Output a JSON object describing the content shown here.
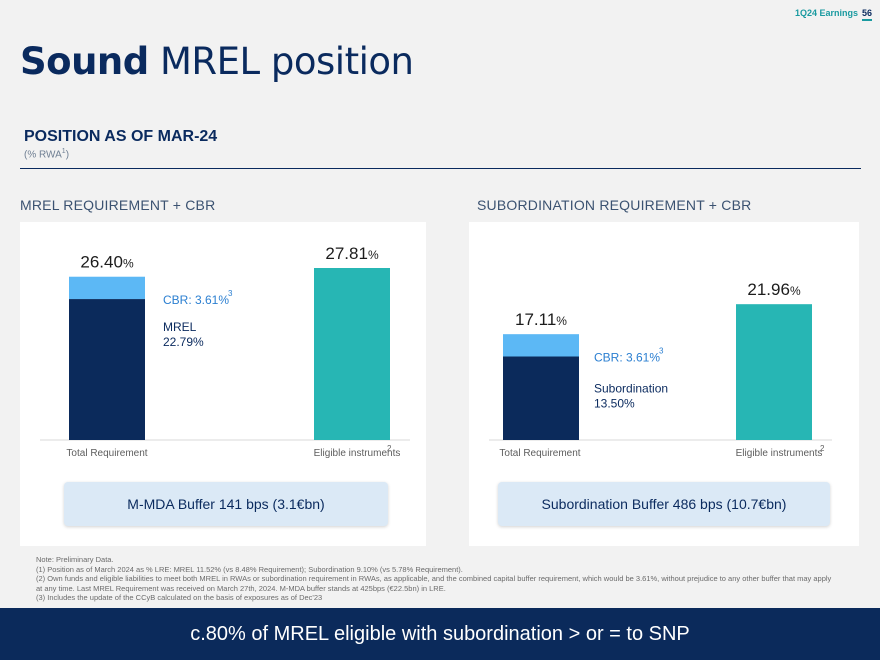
{
  "header": {
    "section": "1Q24 Earnings",
    "page": "56"
  },
  "title": {
    "bold": "Sound",
    "light": "MREL position"
  },
  "section": {
    "heading": "POSITION AS OF MAR-24",
    "subtitle": "(% RWA",
    "subtitle_sup": "1",
    "subtitle_end": ")"
  },
  "chart_data": [
    {
      "type": "bar",
      "title": "MREL REQUIREMENT + CBR",
      "unit": "%",
      "categories": [
        "Total Requirement",
        "Eligible instruments"
      ],
      "category_sups": [
        "",
        "2"
      ],
      "totals": [
        "26.40",
        "27.81"
      ],
      "ylim": [
        0,
        30
      ],
      "series": [
        {
          "name": "MREL",
          "values": [
            22.79,
            0
          ],
          "color": "#0b2a5b"
        },
        {
          "name": "CBR",
          "values": [
            3.61,
            0
          ],
          "color": "#5cb8f5"
        },
        {
          "name": "Eligible instruments",
          "values": [
            0,
            27.81
          ],
          "color": "#27b6b4"
        }
      ],
      "annotations": {
        "cbr_label": "CBR: 3.61%",
        "cbr_sup": "3",
        "base_label": "MREL",
        "base_value": "22.79%"
      },
      "buffer": "M-MDA Buffer 141 bps (3.1€bn)"
    },
    {
      "type": "bar",
      "title": "SUBORDINATION REQUIREMENT + CBR",
      "unit": "%",
      "categories": [
        "Total Requirement",
        "Eligible instruments"
      ],
      "category_sups": [
        "",
        "2"
      ],
      "totals": [
        "17.11",
        "21.96"
      ],
      "ylim": [
        0,
        30
      ],
      "series": [
        {
          "name": "Subordination",
          "values": [
            13.5,
            0
          ],
          "color": "#0b2a5b"
        },
        {
          "name": "CBR",
          "values": [
            3.61,
            0
          ],
          "color": "#5cb8f5"
        },
        {
          "name": "Eligible instruments",
          "values": [
            0,
            21.96
          ],
          "color": "#27b6b4"
        }
      ],
      "annotations": {
        "cbr_label": "CBR: 3.61%",
        "cbr_sup": "3",
        "base_label": "Subordination",
        "base_value": "13.50%"
      },
      "buffer": "Subordination Buffer 486 bps (10.7€bn)"
    }
  ],
  "notes": [
    "Note: Preliminary Data.",
    "(1) Position as of March 2024  as % LRE: MREL 11.52% (vs 8.48% Requirement); Subordination 9.10% (vs 5.78% Requirement).",
    "(2) Own funds and eligible liabilities to meet both MREL in RWAs or subordination requirement in RWAs, as applicable, and the combined capital buffer requirement, which would be 3.61%, without prejudice to any other buffer that may apply at any time. Last MREL Requirement was received on March 27th, 2024. M-MDA buffer stands at 425bps (€22.5bn) in LRE.",
    "(3) Includes the update of the CCyB calculated on the basis of exposures as of Dec'23"
  ],
  "footer": "c.80% of MREL eligible with subordination > or = to SNP"
}
